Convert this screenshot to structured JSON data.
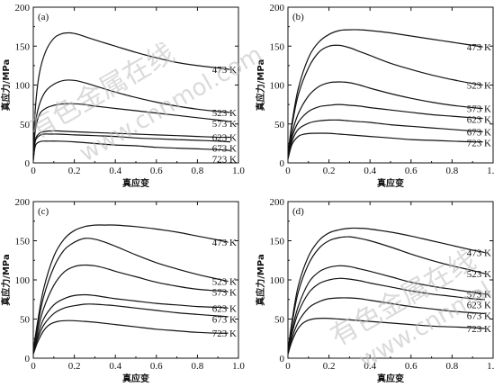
{
  "watermark": {
    "text_cn": "有色金属在线",
    "text_url": "www.cnnmol.com"
  },
  "chart_data": [
    {
      "type": "line",
      "panel_label": "(a)",
      "xlabel": "真应变",
      "ylabel": "真应力/MPa",
      "xlim": [
        0,
        1.0
      ],
      "ylim": [
        0,
        200
      ],
      "xticks": [
        "0",
        "0.2",
        "0.4",
        "0.6",
        "0.8",
        "1.0"
      ],
      "yticks": [
        "0",
        "50",
        "100",
        "150",
        "200"
      ],
      "series": [
        {
          "name": "473 K",
          "x": [
            0,
            0.01,
            0.03,
            0.06,
            0.1,
            0.14,
            0.18,
            0.22,
            0.3,
            0.4,
            0.5,
            0.6,
            0.7,
            0.8,
            0.9,
            0.96
          ],
          "y": [
            10,
            70,
            115,
            143,
            160,
            166,
            167,
            165,
            158,
            150,
            142,
            135,
            129,
            125,
            122,
            120
          ]
        },
        {
          "name": "523 K",
          "x": [
            0,
            0.01,
            0.03,
            0.06,
            0.1,
            0.15,
            0.2,
            0.25,
            0.3,
            0.4,
            0.5,
            0.6,
            0.7,
            0.8,
            0.9,
            0.96
          ],
          "y": [
            8,
            50,
            75,
            92,
            101,
            106,
            106,
            103,
            99,
            91,
            84,
            78,
            73,
            69,
            66,
            65
          ]
        },
        {
          "name": "573 K",
          "x": [
            0,
            0.01,
            0.03,
            0.06,
            0.1,
            0.15,
            0.2,
            0.25,
            0.3,
            0.4,
            0.5,
            0.6,
            0.7,
            0.8,
            0.9,
            0.96
          ],
          "y": [
            6,
            42,
            62,
            70,
            74,
            76,
            76,
            75,
            73,
            70,
            67,
            64,
            61,
            58,
            55,
            53
          ]
        },
        {
          "name": "623 K",
          "x": [
            0,
            0.01,
            0.03,
            0.05,
            0.08,
            0.12,
            0.2,
            0.3,
            0.4,
            0.5,
            0.6,
            0.7,
            0.8,
            0.9,
            0.96
          ],
          "y": [
            5,
            30,
            38,
            40,
            41,
            41,
            40,
            39,
            38,
            37,
            36,
            35,
            34,
            33,
            33
          ]
        },
        {
          "name": "673 K",
          "x": [
            0,
            0.01,
            0.03,
            0.05,
            0.08,
            0.12,
            0.2,
            0.3,
            0.4,
            0.5,
            0.6,
            0.7,
            0.8,
            0.9,
            0.96
          ],
          "y": [
            4,
            28,
            35,
            37,
            37,
            37,
            36,
            35,
            34,
            32,
            31,
            30,
            29,
            28,
            27
          ]
        },
        {
          "name": "723 K",
          "x": [
            0,
            0.01,
            0.03,
            0.05,
            0.08,
            0.12,
            0.2,
            0.3,
            0.4,
            0.5,
            0.6,
            0.7,
            0.8,
            0.9,
            0.96
          ],
          "y": [
            3,
            22,
            27,
            28,
            28,
            28,
            27,
            25,
            23,
            22,
            20,
            19,
            18,
            17,
            16
          ]
        }
      ]
    },
    {
      "type": "line",
      "panel_label": "(b)",
      "xlabel": "真应变",
      "ylabel": "真应力/MPa",
      "xlim": [
        0,
        1.0
      ],
      "ylim": [
        0,
        200
      ],
      "xticks": [
        "0",
        "0.2",
        "0.4",
        "0.6",
        "0.8",
        "1.0"
      ],
      "yticks": [
        "0",
        "50",
        "100",
        "150",
        "200"
      ],
      "series": [
        {
          "name": "473 K",
          "x": [
            0,
            0.02,
            0.05,
            0.1,
            0.15,
            0.2,
            0.25,
            0.3,
            0.35,
            0.4,
            0.5,
            0.6,
            0.7,
            0.8,
            0.9,
            0.95
          ],
          "y": [
            12,
            52,
            95,
            135,
            155,
            165,
            170,
            171,
            171,
            170,
            167,
            163,
            159,
            155,
            151,
            149
          ]
        },
        {
          "name": "523 K",
          "x": [
            0,
            0.02,
            0.05,
            0.1,
            0.15,
            0.2,
            0.25,
            0.3,
            0.35,
            0.4,
            0.5,
            0.6,
            0.7,
            0.8,
            0.9,
            0.95
          ],
          "y": [
            10,
            48,
            87,
            122,
            142,
            150,
            151,
            148,
            143,
            138,
            128,
            120,
            113,
            107,
            102,
            100
          ]
        },
        {
          "name": "573 K",
          "x": [
            0,
            0.02,
            0.05,
            0.1,
            0.15,
            0.2,
            0.25,
            0.3,
            0.35,
            0.4,
            0.5,
            0.6,
            0.7,
            0.8,
            0.9,
            0.95
          ],
          "y": [
            8,
            38,
            63,
            86,
            98,
            103,
            104,
            103,
            100,
            96,
            89,
            83,
            78,
            74,
            71,
            70
          ]
        },
        {
          "name": "623 K",
          "x": [
            0,
            0.02,
            0.05,
            0.1,
            0.15,
            0.2,
            0.25,
            0.3,
            0.35,
            0.4,
            0.5,
            0.6,
            0.7,
            0.8,
            0.9,
            0.95
          ],
          "y": [
            7,
            33,
            52,
            66,
            72,
            74,
            75,
            74,
            73,
            71,
            68,
            65,
            62,
            60,
            58,
            57
          ]
        },
        {
          "name": "673 K",
          "x": [
            0,
            0.02,
            0.05,
            0.1,
            0.15,
            0.2,
            0.25,
            0.3,
            0.35,
            0.4,
            0.5,
            0.6,
            0.7,
            0.8,
            0.9,
            0.95
          ],
          "y": [
            6,
            28,
            43,
            51,
            54,
            55,
            55,
            54,
            53,
            52,
            49,
            47,
            45,
            43,
            41,
            40
          ]
        },
        {
          "name": "723 K",
          "x": [
            0,
            0.02,
            0.05,
            0.08,
            0.12,
            0.2,
            0.25,
            0.3,
            0.4,
            0.5,
            0.6,
            0.7,
            0.8,
            0.9,
            0.95
          ],
          "y": [
            5,
            24,
            34,
            37,
            38,
            38,
            37,
            36,
            34,
            32,
            30,
            29,
            28,
            27,
            27
          ]
        }
      ]
    },
    {
      "type": "line",
      "panel_label": "(c)",
      "xlabel": "真应变",
      "ylabel": "真应力/MPa",
      "xlim": [
        0,
        1.0
      ],
      "ylim": [
        0,
        200
      ],
      "xticks": [
        "0",
        "0.2",
        "0.4",
        "0.6",
        "0.8",
        "1.0"
      ],
      "yticks": [
        "0",
        "50",
        "100",
        "150",
        "200"
      ],
      "series": [
        {
          "name": "473 K",
          "x": [
            0,
            0.02,
            0.05,
            0.1,
            0.15,
            0.2,
            0.25,
            0.3,
            0.35,
            0.4,
            0.5,
            0.6,
            0.7,
            0.8,
            0.9,
            0.95
          ],
          "y": [
            10,
            45,
            88,
            130,
            152,
            163,
            168,
            170,
            170,
            170,
            168,
            165,
            161,
            156,
            151,
            148
          ]
        },
        {
          "name": "523 K",
          "x": [
            0,
            0.02,
            0.05,
            0.1,
            0.15,
            0.2,
            0.25,
            0.3,
            0.35,
            0.4,
            0.5,
            0.6,
            0.7,
            0.8,
            0.9,
            0.95
          ],
          "y": [
            9,
            40,
            78,
            116,
            138,
            148,
            153,
            152,
            148,
            143,
            132,
            122,
            114,
            107,
            101,
            98
          ]
        },
        {
          "name": "573 K",
          "x": [
            0,
            0.02,
            0.05,
            0.1,
            0.15,
            0.2,
            0.25,
            0.3,
            0.35,
            0.4,
            0.5,
            0.6,
            0.7,
            0.8,
            0.9,
            0.95
          ],
          "y": [
            8,
            34,
            63,
            93,
            110,
            117,
            119,
            118,
            115,
            111,
            104,
            97,
            92,
            88,
            86,
            85
          ]
        },
        {
          "name": "623 K",
          "x": [
            0,
            0.02,
            0.05,
            0.1,
            0.15,
            0.2,
            0.25,
            0.3,
            0.35,
            0.4,
            0.5,
            0.6,
            0.7,
            0.8,
            0.9,
            0.95
          ],
          "y": [
            7,
            28,
            50,
            68,
            76,
            80,
            81,
            80,
            78,
            76,
            73,
            70,
            68,
            66,
            65,
            64
          ]
        },
        {
          "name": "673 K",
          "x": [
            0,
            0.02,
            0.05,
            0.1,
            0.15,
            0.2,
            0.25,
            0.3,
            0.35,
            0.4,
            0.5,
            0.6,
            0.7,
            0.8,
            0.9,
            0.95
          ],
          "y": [
            6,
            24,
            42,
            57,
            64,
            67,
            69,
            69,
            68,
            67,
            64,
            61,
            58,
            56,
            54,
            53
          ]
        },
        {
          "name": "723 K",
          "x": [
            0,
            0.02,
            0.05,
            0.08,
            0.12,
            0.17,
            0.25,
            0.3,
            0.4,
            0.5,
            0.6,
            0.7,
            0.8,
            0.9,
            0.95
          ],
          "y": [
            5,
            20,
            35,
            43,
            47,
            48,
            47,
            46,
            43,
            40,
            37,
            35,
            33,
            32,
            32
          ]
        }
      ]
    },
    {
      "type": "line",
      "panel_label": "(d)",
      "xlabel": "真应变",
      "ylabel": "真应力/MPa",
      "xlim": [
        0,
        1.0
      ],
      "ylim": [
        0,
        200
      ],
      "xticks": [
        "0",
        "0.2",
        "0.4",
        "0.6",
        "0.8",
        "1.0"
      ],
      "yticks": [
        "0",
        "50",
        "100",
        "150",
        "200"
      ],
      "series": [
        {
          "name": "473 K",
          "x": [
            0,
            0.02,
            0.05,
            0.1,
            0.15,
            0.2,
            0.25,
            0.3,
            0.35,
            0.4,
            0.5,
            0.6,
            0.7,
            0.8,
            0.9,
            0.96
          ],
          "y": [
            10,
            48,
            92,
            130,
            150,
            160,
            164,
            166,
            166,
            165,
            161,
            156,
            150,
            144,
            138,
            135
          ]
        },
        {
          "name": "523 K",
          "x": [
            0,
            0.02,
            0.05,
            0.1,
            0.15,
            0.2,
            0.25,
            0.3,
            0.35,
            0.4,
            0.5,
            0.6,
            0.7,
            0.8,
            0.9,
            0.96
          ],
          "y": [
            9,
            44,
            84,
            120,
            140,
            150,
            154,
            155,
            153,
            150,
            142,
            133,
            125,
            118,
            112,
            108
          ]
        },
        {
          "name": "573 K",
          "x": [
            0,
            0.02,
            0.05,
            0.1,
            0.15,
            0.2,
            0.25,
            0.3,
            0.35,
            0.4,
            0.5,
            0.6,
            0.7,
            0.8,
            0.9,
            0.96
          ],
          "y": [
            8,
            36,
            66,
            96,
            110,
            116,
            118,
            117,
            114,
            111,
            104,
            97,
            92,
            88,
            84,
            82
          ]
        },
        {
          "name": "623 K",
          "x": [
            0,
            0.02,
            0.05,
            0.1,
            0.15,
            0.2,
            0.25,
            0.3,
            0.35,
            0.4,
            0.5,
            0.6,
            0.7,
            0.8,
            0.9,
            0.96
          ],
          "y": [
            7,
            32,
            58,
            83,
            95,
            100,
            102,
            101,
            99,
            96,
            91,
            86,
            82,
            79,
            76,
            75
          ]
        },
        {
          "name": "673 K",
          "x": [
            0,
            0.02,
            0.05,
            0.1,
            0.15,
            0.2,
            0.25,
            0.3,
            0.35,
            0.4,
            0.5,
            0.6,
            0.7,
            0.8,
            0.9,
            0.96
          ],
          "y": [
            6,
            26,
            46,
            64,
            72,
            76,
            77,
            77,
            76,
            74,
            70,
            66,
            63,
            60,
            58,
            57
          ]
        },
        {
          "name": "723 K",
          "x": [
            0,
            0.02,
            0.05,
            0.08,
            0.12,
            0.17,
            0.25,
            0.3,
            0.4,
            0.5,
            0.6,
            0.7,
            0.8,
            0.9,
            0.96
          ],
          "y": [
            5,
            22,
            38,
            46,
            50,
            51,
            50,
            49,
            47,
            45,
            43,
            41,
            40,
            39,
            38
          ]
        }
      ]
    }
  ]
}
